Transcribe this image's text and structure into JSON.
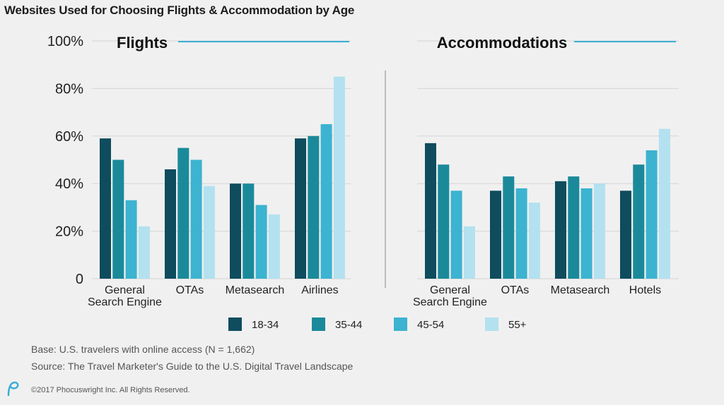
{
  "title": "Websites Used for Choosing Flights & Accommodation by Age",
  "colors": {
    "accent_line": "#3aaed8",
    "grid": "#d4d4d4",
    "divider": "#bdbdbd",
    "series": [
      "#0e4c5e",
      "#1a8a9a",
      "#3cb3d0",
      "#b3e1ef"
    ],
    "logo": "#3aaed8"
  },
  "yaxis": {
    "ticks": [
      0,
      20,
      40,
      60,
      80,
      100
    ],
    "tick_labels": [
      "0",
      "20%",
      "40%",
      "60%",
      "80%",
      "100%"
    ]
  },
  "legend": [
    "18-34",
    "35-44",
    "45-54",
    "55+"
  ],
  "chart_data": [
    {
      "type": "bar",
      "title": "Flights",
      "categories": [
        "General Search Engine",
        "OTAs",
        "Metasearch",
        "Airlines"
      ],
      "category_lines": [
        [
          "General",
          "Search Engine"
        ],
        [
          "OTAs"
        ],
        [
          "Metasearch"
        ],
        [
          "Airlines"
        ]
      ],
      "series": [
        {
          "name": "18-34",
          "values": [
            59,
            46,
            40,
            59
          ]
        },
        {
          "name": "35-44",
          "values": [
            50,
            55,
            40,
            60
          ]
        },
        {
          "name": "45-54",
          "values": [
            33,
            50,
            31,
            65
          ]
        },
        {
          "name": "55+",
          "values": [
            22,
            39,
            27,
            85
          ]
        }
      ],
      "ylim": [
        0,
        100
      ],
      "grid": true
    },
    {
      "type": "bar",
      "title": "Accommodations",
      "categories": [
        "General Search Engine",
        "OTAs",
        "Metasearch",
        "Hotels"
      ],
      "category_lines": [
        [
          "General",
          "Search Engine"
        ],
        [
          "OTAs"
        ],
        [
          "Metasearch"
        ],
        [
          "Hotels"
        ]
      ],
      "series": [
        {
          "name": "18-34",
          "values": [
            57,
            37,
            41,
            37
          ]
        },
        {
          "name": "35-44",
          "values": [
            48,
            43,
            43,
            48
          ]
        },
        {
          "name": "45-54",
          "values": [
            37,
            38,
            38,
            54
          ]
        },
        {
          "name": "55+",
          "values": [
            22,
            32,
            40,
            63
          ]
        }
      ],
      "ylim": [
        0,
        100
      ],
      "grid": true
    }
  ],
  "footnotes": {
    "base": "Base: U.S. travelers with online access (N = 1,662)",
    "source": "Source: The Travel Marketer's Guide to the U.S. Digital Travel Landscape",
    "copyright": "©2017 Phocuswright Inc. All Rights Reserved."
  },
  "logo_icon": "phocuswright-logo-icon"
}
